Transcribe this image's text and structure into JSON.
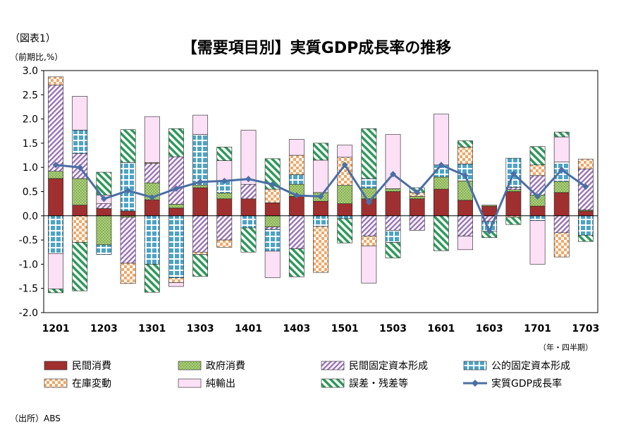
{
  "figure_label": "（図表1）",
  "unit_label": "（前期比,%）",
  "period_label": "（年・四半期）",
  "source": "（出所）ABS",
  "chart_data": {
    "type": "bar",
    "stacked": true,
    "title": "【需要項目別】実質GDP成長率の推移",
    "ylabel": "（前期比,%）",
    "xlabel": "（年・四半期）",
    "ylim": [
      -2.0,
      3.0
    ],
    "yticks": [
      "3.0",
      "2.5",
      "2.0",
      "1.5",
      "1.0",
      "0.5",
      "0.0",
      "-0.5",
      "-1.0",
      "-1.5",
      "-2.0"
    ],
    "categories": [
      "1201",
      "1202",
      "1203",
      "1204",
      "1301",
      "1302",
      "1303",
      "1304",
      "1401",
      "1402",
      "1403",
      "1404",
      "1501",
      "1502",
      "1503",
      "1504",
      "1601",
      "1602",
      "1603",
      "1604",
      "1701",
      "1702",
      "1703"
    ],
    "xtick_labels": [
      "1201",
      "1203",
      "1301",
      "1303",
      "1401",
      "1403",
      "1501",
      "1503",
      "1601",
      "1603",
      "1701",
      "1703"
    ],
    "grid": false,
    "legend_position": "bottom",
    "series": [
      {
        "name": "民間消費",
        "key": "private_consumption",
        "color": "#a0302f",
        "values": [
          0.77,
          0.22,
          0.15,
          0.1,
          0.33,
          0.16,
          0.58,
          0.35,
          0.35,
          0.27,
          0.4,
          0.3,
          0.25,
          0.35,
          0.5,
          0.35,
          0.55,
          0.32,
          0.2,
          0.5,
          0.2,
          0.48,
          0.1
        ]
      },
      {
        "name": "政府消費",
        "key": "government_consumption",
        "color": "#8dba58",
        "values": [
          0.15,
          0.55,
          -0.6,
          -0.03,
          0.35,
          0.08,
          0.05,
          0.12,
          0.0,
          -0.23,
          0.25,
          0.18,
          0.38,
          0.22,
          0.06,
          0.05,
          0.25,
          0.4,
          0.02,
          0.04,
          0.23,
          0.23,
          0.02
        ]
      },
      {
        "name": "民間固定資本形成",
        "key": "private_fixed_investment",
        "color": "#9a72b8",
        "values": [
          1.78,
          0.52,
          0.1,
          -0.95,
          0.4,
          0.98,
          -0.75,
          -0.5,
          0.3,
          -0.05,
          -0.68,
          0.0,
          0.0,
          -0.42,
          -0.3,
          -0.3,
          0.0,
          -0.42,
          -0.12,
          0.05,
          0.4,
          -0.35,
          0.85
        ]
      },
      {
        "name": "公的固定資本形成",
        "key": "public_fixed_investment",
        "color": "#4ba3c7",
        "values": [
          -0.78,
          0.48,
          -0.2,
          1.0,
          -1.0,
          -1.28,
          1.05,
          0.25,
          -0.25,
          -0.45,
          0.2,
          -0.22,
          -0.06,
          0.2,
          -0.25,
          0.0,
          0.25,
          0.35,
          -0.2,
          0.6,
          -0.1,
          0.4,
          -0.4
        ]
      },
      {
        "name": "在庫変動",
        "key": "inventory_change",
        "color": "#e8a060",
        "values": [
          0.17,
          -0.55,
          0.0,
          -0.42,
          0.02,
          -0.1,
          -0.05,
          -0.15,
          0.0,
          0.28,
          0.4,
          -0.95,
          0.58,
          -0.2,
          0.0,
          0.08,
          0.0,
          0.35,
          0.0,
          -0.03,
          0.22,
          -0.5,
          0.2
        ]
      },
      {
        "name": "純輸出",
        "key": "net_exports",
        "color": "#f0b8e8",
        "values": [
          -0.73,
          0.7,
          0.18,
          0.0,
          0.95,
          -0.08,
          0.4,
          0.42,
          1.12,
          -0.55,
          0.33,
          0.67,
          0.25,
          -0.77,
          1.12,
          0.0,
          1.05,
          -0.28,
          0.0,
          0.0,
          -0.9,
          0.52,
          0.0
        ]
      },
      {
        "name": "誤差・残差等",
        "key": "statistical_discrepancy",
        "color": "#2e9a5a",
        "values": [
          -0.08,
          -1.0,
          0.47,
          0.68,
          -0.58,
          0.58,
          -0.45,
          0.28,
          -0.5,
          0.63,
          -0.58,
          0.35,
          -0.5,
          1.03,
          -0.32,
          0.1,
          -0.72,
          0.13,
          -0.13,
          -0.15,
          0.38,
          0.1,
          -0.13
        ]
      },
      {
        "name": "実質GDP成長率",
        "key": "real_gdp_growth",
        "color": "#4a6fa5",
        "type": "line",
        "values": [
          1.05,
          1.0,
          0.35,
          0.52,
          0.38,
          0.56,
          0.7,
          0.72,
          0.76,
          0.65,
          0.42,
          0.4,
          1.05,
          0.28,
          0.86,
          0.48,
          1.05,
          0.83,
          -0.32,
          0.87,
          0.4,
          0.95,
          0.6
        ]
      }
    ]
  }
}
